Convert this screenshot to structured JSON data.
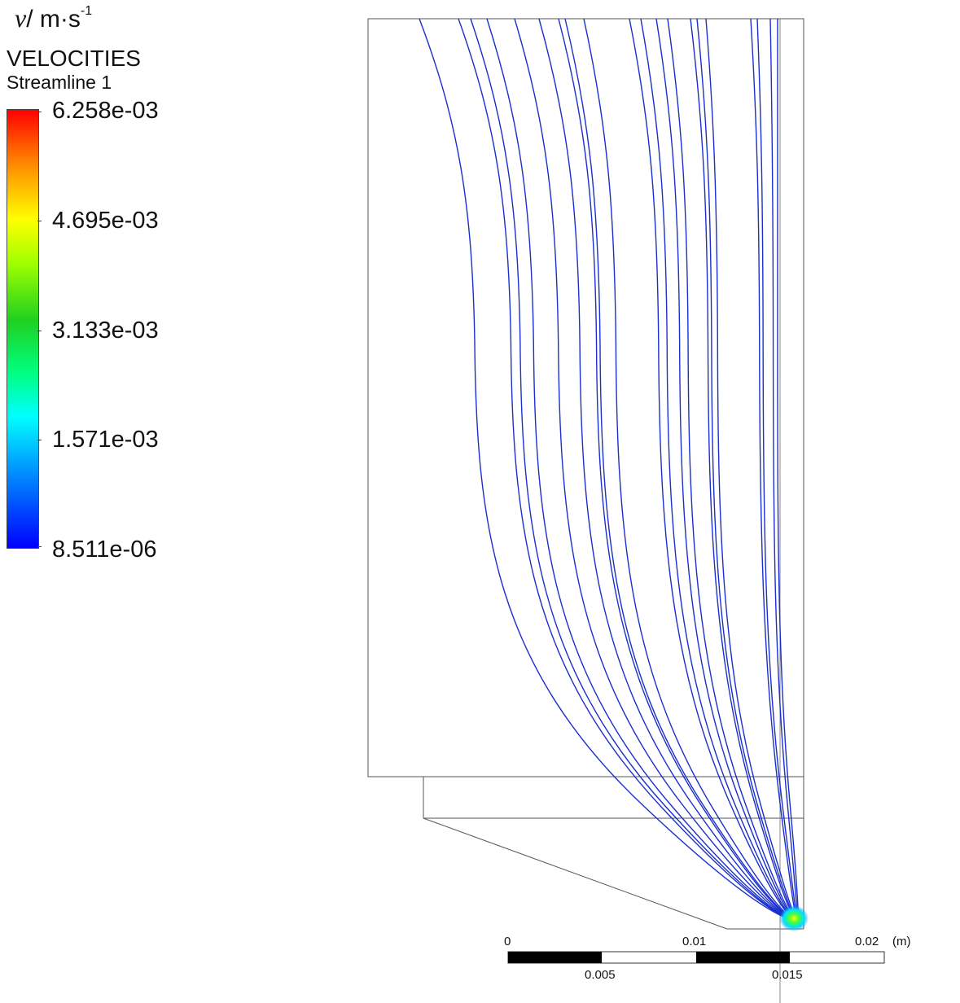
{
  "legend": {
    "symbol": "v",
    "unit_separator": "/ m·s",
    "unit_exponent": "-1",
    "heading": "VELOCITIES",
    "subheading": "Streamline 1",
    "colormap": [
      "#0000ff",
      "#0096ff",
      "#00ffff",
      "#00ff80",
      "#20d020",
      "#a0ff00",
      "#ffff00",
      "#ff9000",
      "#ff0000"
    ],
    "ticks": [
      "6.258e-03",
      "4.695e-03",
      "3.133e-03",
      "1.571e-03",
      "8.511e-06"
    ]
  },
  "scale_bar": {
    "top_labels": [
      "0",
      "0.01",
      "0.02"
    ],
    "unit": "(m)",
    "bottom_labels": [
      "0.005",
      "0.015"
    ]
  },
  "streamline_color": "#1a2fcc"
}
